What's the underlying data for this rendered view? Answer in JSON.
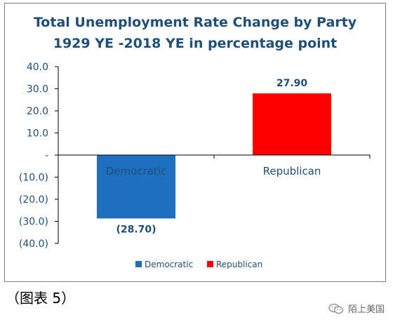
{
  "chart_data": {
    "type": "bar",
    "title": [
      "Total Unemployment Rate Change by Party",
      "1929 YE -2018 YE in percentage point"
    ],
    "categories": [
      "Democratic",
      "Republican"
    ],
    "values": [
      -28.7,
      27.9
    ],
    "value_labels": [
      "(28.70)",
      "27.90"
    ],
    "colors": [
      "#1f6fbf",
      "#ff0000"
    ],
    "ylim": [
      -40,
      40
    ],
    "y_ticks": [
      {
        "value": 40,
        "label": "40.0"
      },
      {
        "value": 30,
        "label": "30.0"
      },
      {
        "value": 20,
        "label": "20.0"
      },
      {
        "value": 10,
        "label": "10.0"
      },
      {
        "value": 0,
        "label": "-"
      },
      {
        "value": -10,
        "label": "(10.0)"
      },
      {
        "value": -20,
        "label": "(20.0)"
      },
      {
        "value": -30,
        "label": "(30.0)"
      },
      {
        "value": -40,
        "label": "(40.0)"
      }
    ],
    "legend": {
      "placement": "bottom",
      "entries": [
        "Democratic",
        "Republican"
      ]
    },
    "grid": false
  },
  "caption": "（图表 5）",
  "watermark": "陌上美国"
}
